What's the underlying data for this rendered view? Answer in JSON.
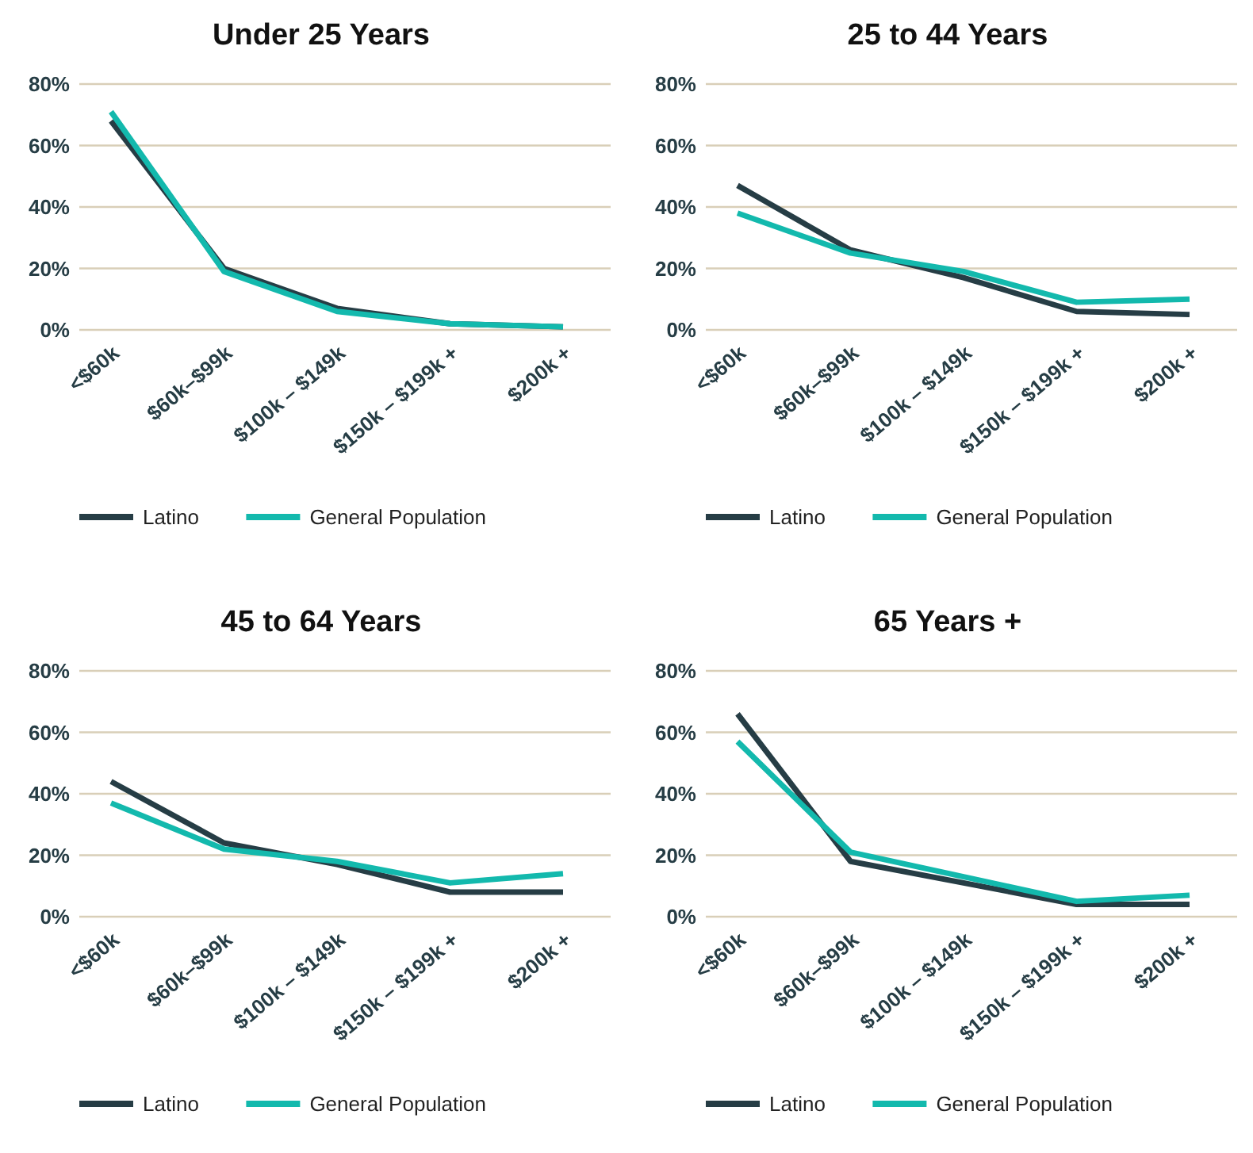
{
  "chart_data": [
    {
      "type": "line",
      "title": "Under 25 Years",
      "categories": [
        "<$60k",
        "$60k–$99k",
        "$100k – $149k",
        "$150k – $199k +",
        "$200k +"
      ],
      "ylim": [
        0,
        80
      ],
      "yticks": [
        {
          "value": 0,
          "label": "0%"
        },
        {
          "value": 20,
          "label": "20%"
        },
        {
          "value": 40,
          "label": "40%"
        },
        {
          "value": 60,
          "label": "60%"
        },
        {
          "value": 80,
          "label": "80%"
        }
      ],
      "grid": "y",
      "legend": "bottom",
      "series": [
        {
          "name": "Latino",
          "color": "#263d45",
          "values": [
            68,
            20,
            7,
            2,
            1
          ]
        },
        {
          "name": "General Population",
          "color": "#13b9ad",
          "values": [
            71,
            19,
            6,
            2,
            1
          ]
        }
      ]
    },
    {
      "type": "line",
      "title": "25 to 44 Years",
      "categories": [
        "<$60k",
        "$60k–$99k",
        "$100k – $149k",
        "$150k – $199k +",
        "$200k +"
      ],
      "ylim": [
        0,
        80
      ],
      "yticks": [
        {
          "value": 0,
          "label": "0%"
        },
        {
          "value": 20,
          "label": "20%"
        },
        {
          "value": 40,
          "label": "40%"
        },
        {
          "value": 60,
          "label": "60%"
        },
        {
          "value": 80,
          "label": "80%"
        }
      ],
      "grid": "y",
      "legend": "bottom",
      "series": [
        {
          "name": "Latino",
          "color": "#263d45",
          "values": [
            47,
            26,
            17,
            6,
            5
          ]
        },
        {
          "name": "General Population",
          "color": "#13b9ad",
          "values": [
            38,
            25,
            19,
            9,
            10
          ]
        }
      ]
    },
    {
      "type": "line",
      "title": "45 to 64 Years",
      "categories": [
        "<$60k",
        "$60k–$99k",
        "$100k – $149k",
        "$150k – $199k +",
        "$200k +"
      ],
      "ylim": [
        0,
        80
      ],
      "yticks": [
        {
          "value": 0,
          "label": "0%"
        },
        {
          "value": 20,
          "label": "20%"
        },
        {
          "value": 40,
          "label": "40%"
        },
        {
          "value": 60,
          "label": "60%"
        },
        {
          "value": 80,
          "label": "80%"
        }
      ],
      "grid": "y",
      "legend": "bottom",
      "series": [
        {
          "name": "Latino",
          "color": "#263d45",
          "values": [
            44,
            24,
            17,
            8,
            8
          ]
        },
        {
          "name": "General Population",
          "color": "#13b9ad",
          "values": [
            37,
            22,
            18,
            11,
            14
          ]
        }
      ]
    },
    {
      "type": "line",
      "title": "65 Years +",
      "categories": [
        "<$60k",
        "$60k–$99k",
        "$100k – $149k",
        "$150k – $199k +",
        "$200k +"
      ],
      "ylim": [
        0,
        80
      ],
      "yticks": [
        {
          "value": 0,
          "label": "0%"
        },
        {
          "value": 20,
          "label": "20%"
        },
        {
          "value": 40,
          "label": "40%"
        },
        {
          "value": 60,
          "label": "60%"
        },
        {
          "value": 80,
          "label": "80%"
        }
      ],
      "grid": "y",
      "legend": "bottom",
      "series": [
        {
          "name": "Latino",
          "color": "#263d45",
          "values": [
            66,
            18,
            11,
            4,
            4
          ]
        },
        {
          "name": "General Population",
          "color": "#13b9ad",
          "values": [
            57,
            21,
            13,
            5,
            7
          ]
        }
      ]
    }
  ]
}
